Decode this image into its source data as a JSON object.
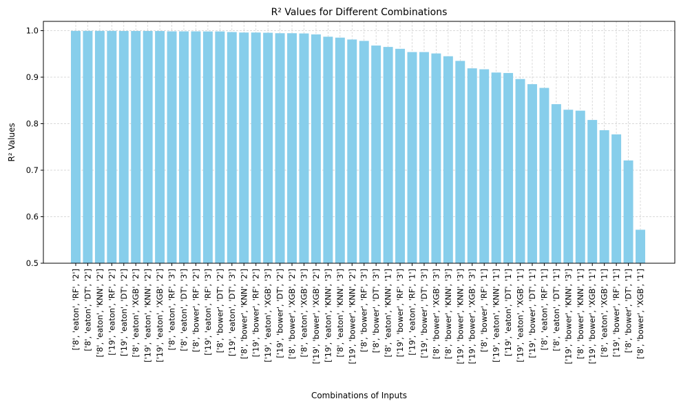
{
  "chart_data": {
    "type": "bar",
    "title": "R² Values for Different Combinations",
    "xlabel": "Combinations of Inputs",
    "ylabel": "R² Values",
    "ylim": [
      0.5,
      1.02
    ],
    "yticks": [
      "0.5",
      "0.6",
      "0.7",
      "0.8",
      "0.9",
      "1.0"
    ],
    "grid": true,
    "bar_color": "#87ceeb",
    "categories": [
      "['8', 'eaton', 'RF', '2']",
      "['8', 'eaton', 'DT', '2']",
      "['8', 'eaton', 'KNN', '2']",
      "['19', 'eaton', 'RF', '2']",
      "['19', 'eaton', 'DT', '2']",
      "['8', 'eaton', 'XGB', '2']",
      "['19', 'eaton', 'KNN', '2']",
      "['19', 'eaton', 'XGB', '2']",
      "['8', 'eaton', 'RF', '3']",
      "['8', 'eaton', 'DT', '3']",
      "['8', 'bower', 'RF', '2']",
      "['19', 'eaton', 'RF', '3']",
      "['8', 'bower', 'DT', '2']",
      "['19', 'eaton', 'DT', '3']",
      "['8', 'bower', 'KNN', '2']",
      "['19', 'bower', 'RF', '2']",
      "['19', 'eaton', 'XGB', '3']",
      "['19', 'bower', 'DT', '2']",
      "['8', 'bower', 'XGB', '2']",
      "['8', 'eaton', 'XGB', '3']",
      "['19', 'bower', 'XGB', '2']",
      "['19', 'eaton', 'KNN', '3']",
      "['8', 'eaton', 'KNN', '3']",
      "['19', 'bower', 'KNN', '2']",
      "['8', 'bower', 'RF', '3']",
      "['8', 'bower', 'DT', '3']",
      "['8', 'eaton', 'KNN', '1']",
      "['19', 'bower', 'RF', '3']",
      "['19', 'eaton', 'RF', '1']",
      "['19', 'bower', 'DT', '3']",
      "['8', 'bower', 'XGB', '3']",
      "['8', 'bower', 'KNN', '3']",
      "['19', 'bower', 'KNN', '3']",
      "['19', 'bower', 'XGB', '3']",
      "['8', 'bower', 'RF', '1']",
      "['19', 'eaton', 'KNN', '1']",
      "['19', 'eaton', 'DT', '1']",
      "['19', 'eaton', 'XGB', '1']",
      "['19', 'bower', 'DT', '1']",
      "['8', 'eaton', 'RF', '1']",
      "['8', 'eaton', 'DT', '1']",
      "['19', 'bower', 'KNN', '3']",
      "['8', 'bower', 'KNN', '1']",
      "['19', 'bower', 'XGB', '1']",
      "['8', 'eaton', 'XGB', '1']",
      "['19', 'bower', 'RF', '1']",
      "['8', 'bower', 'DT', '1']",
      "['8', 'bower', 'XGB', '1']"
    ],
    "values": [
      0.9995,
      0.9995,
      0.9995,
      0.9995,
      0.9993,
      0.9993,
      0.9993,
      0.9992,
      0.9985,
      0.9985,
      0.9985,
      0.9983,
      0.9983,
      0.997,
      0.996,
      0.996,
      0.9955,
      0.9945,
      0.9945,
      0.994,
      0.992,
      0.987,
      0.985,
      0.981,
      0.978,
      0.968,
      0.965,
      0.961,
      0.954,
      0.954,
      0.951,
      0.945,
      0.935,
      0.919,
      0.917,
      0.91,
      0.909,
      0.896,
      0.885,
      0.877,
      0.842,
      0.83,
      0.828,
      0.808,
      0.786,
      0.777,
      0.721,
      0.572
    ]
  }
}
